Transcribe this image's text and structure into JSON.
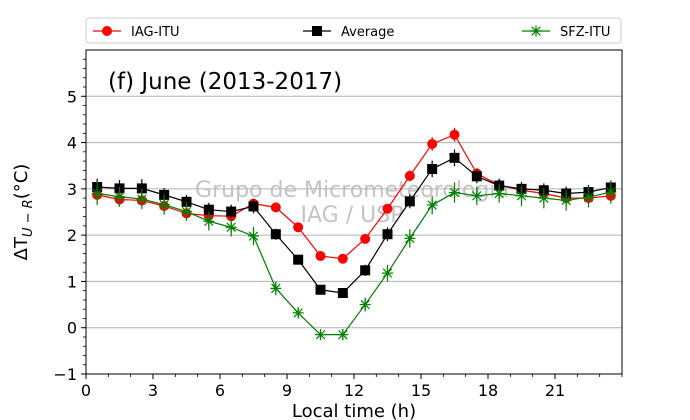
{
  "chart_data": {
    "type": "line",
    "title": "(f) June (2013-2017)",
    "watermark": [
      "Grupo de Micrometeorologia",
      "IAG / USP"
    ],
    "xlabel": "Local time (h)",
    "ylabel": "ΔT",
    "ylabel_subscript": "U − R",
    "ylabel_unit": "(°C)",
    "xlim": [
      0,
      24
    ],
    "ylim": [
      -1,
      6
    ],
    "xticks": [
      0,
      3,
      6,
      9,
      12,
      15,
      18,
      21
    ],
    "yticks": [
      -1,
      0,
      1,
      2,
      3,
      4,
      5
    ],
    "grid": "horizontal",
    "legend": {
      "placement": "top, above plot",
      "columns": 3
    },
    "x": [
      0.5,
      1.5,
      2.5,
      3.5,
      4.5,
      5.5,
      6.5,
      7.5,
      8.5,
      9.5,
      10.5,
      11.5,
      12.5,
      13.5,
      14.5,
      15.5,
      16.5,
      17.5,
      18.5,
      19.5,
      20.5,
      21.5,
      22.5,
      23.5
    ],
    "series": [
      {
        "name": "IAG-ITU",
        "color": "#ff0000",
        "marker": "circle",
        "values": [
          2.87,
          2.77,
          2.75,
          2.63,
          2.47,
          2.42,
          2.41,
          2.68,
          2.6,
          2.17,
          1.55,
          1.49,
          1.92,
          2.57,
          3.28,
          3.97,
          4.17,
          3.33,
          3.08,
          2.97,
          2.9,
          2.8,
          2.8,
          2.85
        ],
        "errors": [
          0.12,
          0.12,
          0.12,
          0.12,
          0.1,
          0.1,
          0.1,
          0.1,
          0.1,
          0.1,
          0.08,
          0.08,
          0.1,
          0.1,
          0.12,
          0.15,
          0.15,
          0.12,
          0.12,
          0.12,
          0.12,
          0.12,
          0.12,
          0.12
        ]
      },
      {
        "name": "Average",
        "color": "#000000",
        "marker": "square",
        "values": [
          3.04,
          3.01,
          3.01,
          2.87,
          2.72,
          2.55,
          2.51,
          2.62,
          2.02,
          1.47,
          0.82,
          0.75,
          1.24,
          2.02,
          2.73,
          3.43,
          3.67,
          3.27,
          3.07,
          3.0,
          2.97,
          2.9,
          2.93,
          3.03
        ],
        "errors": [
          0.18,
          0.18,
          0.2,
          0.15,
          0.15,
          0.15,
          0.15,
          0.15,
          0.12,
          0.1,
          0.08,
          0.1,
          0.12,
          0.15,
          0.15,
          0.18,
          0.18,
          0.15,
          0.15,
          0.15,
          0.15,
          0.15,
          0.15,
          0.15
        ]
      },
      {
        "name": "SFZ-ITU",
        "color": "#008000",
        "marker": "x-star",
        "values": [
          2.9,
          2.83,
          2.78,
          2.66,
          2.51,
          2.3,
          2.17,
          1.98,
          0.85,
          0.32,
          -0.15,
          -0.15,
          0.5,
          1.18,
          1.93,
          2.65,
          2.92,
          2.85,
          2.9,
          2.85,
          2.8,
          2.75,
          2.82,
          2.93
        ],
        "errors": [
          0.25,
          0.22,
          0.22,
          0.22,
          0.2,
          0.2,
          0.2,
          0.2,
          0.15,
          0.12,
          0.1,
          0.12,
          0.15,
          0.18,
          0.2,
          0.2,
          0.22,
          0.2,
          0.2,
          0.22,
          0.22,
          0.22,
          0.22,
          0.25
        ]
      }
    ]
  }
}
